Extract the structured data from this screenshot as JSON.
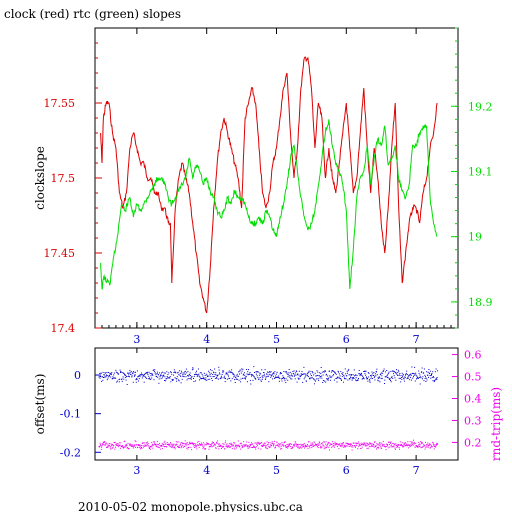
{
  "title": "clock (red) rtc (green) slopes",
  "footer": "2010-05-02  monopole.physics.ubc.ca",
  "colors": {
    "clock": "#dd0000",
    "rtc": "#00dd00",
    "offset": "#0000cc",
    "rndtrip": "#ee00ee",
    "axis": "#000000"
  },
  "chart_data": [
    {
      "type": "line",
      "title": "clock (red) rtc (green) slopes",
      "xlabel": "",
      "ylabel": "clockslope",
      "xlim": [
        2.4,
        7.6
      ],
      "ylim": [
        17.4,
        17.6
      ],
      "y2lim": [
        18.86,
        19.32
      ],
      "x_ticks": [
        3,
        4,
        5,
        6,
        7
      ],
      "y_ticks": [
        17.4,
        17.45,
        17.5,
        17.55
      ],
      "y_tick_labels": [
        "17.4",
        "17.45",
        "17.5",
        "17.55"
      ],
      "y2_ticks": [
        18.9,
        19,
        19.1,
        19.2
      ],
      "y2_tick_labels": [
        "18.9",
        "19",
        "19.1",
        "19.2"
      ],
      "series": [
        {
          "name": "clock",
          "axis": "left",
          "x": [
            2.48,
            2.5,
            2.52,
            2.56,
            2.6,
            2.65,
            2.7,
            2.75,
            2.8,
            2.85,
            2.9,
            2.95,
            3.0,
            3.05,
            3.1,
            3.15,
            3.2,
            3.25,
            3.3,
            3.35,
            3.4,
            3.45,
            3.48,
            3.5,
            3.55,
            3.6,
            3.65,
            3.7,
            3.75,
            3.8,
            3.85,
            3.9,
            3.95,
            4.0,
            4.05,
            4.1,
            4.15,
            4.2,
            4.25,
            4.3,
            4.35,
            4.4,
            4.45,
            4.5,
            4.55,
            4.6,
            4.65,
            4.7,
            4.75,
            4.8,
            4.85,
            4.9,
            4.95,
            5.0,
            5.05,
            5.1,
            5.15,
            5.2,
            5.25,
            5.3,
            5.35,
            5.4,
            5.45,
            5.5,
            5.55,
            5.6,
            5.65,
            5.7,
            5.75,
            5.8,
            5.85,
            5.9,
            5.95,
            6.0,
            6.05,
            6.1,
            6.15,
            6.2,
            6.25,
            6.3,
            6.35,
            6.4,
            6.45,
            6.5,
            6.55,
            6.6,
            6.65,
            6.7,
            6.75,
            6.8,
            6.85,
            6.9,
            6.95,
            7.0,
            7.05,
            7.1,
            7.15,
            7.2,
            7.25,
            7.3
          ],
          "y": [
            17.53,
            17.51,
            17.54,
            17.55,
            17.55,
            17.53,
            17.52,
            17.49,
            17.48,
            17.49,
            17.52,
            17.53,
            17.52,
            17.51,
            17.51,
            17.5,
            17.5,
            17.49,
            17.49,
            17.48,
            17.48,
            17.47,
            17.47,
            17.43,
            17.48,
            17.5,
            17.51,
            17.5,
            17.49,
            17.47,
            17.45,
            17.43,
            17.42,
            17.41,
            17.44,
            17.48,
            17.51,
            17.53,
            17.54,
            17.53,
            17.52,
            17.51,
            17.5,
            17.48,
            17.54,
            17.55,
            17.56,
            17.55,
            17.52,
            17.49,
            17.48,
            17.49,
            17.51,
            17.52,
            17.54,
            17.56,
            17.57,
            17.53,
            17.5,
            17.52,
            17.56,
            17.58,
            17.58,
            17.56,
            17.52,
            17.55,
            17.54,
            17.5,
            17.52,
            17.5,
            17.49,
            17.51,
            17.53,
            17.55,
            17.52,
            17.49,
            17.5,
            17.53,
            17.56,
            17.52,
            17.49,
            17.52,
            17.5,
            17.47,
            17.45,
            17.48,
            17.52,
            17.55,
            17.48,
            17.43,
            17.45,
            17.47,
            17.48,
            17.48,
            17.47,
            17.49,
            17.5,
            17.52,
            17.53,
            17.55
          ]
        },
        {
          "name": "rtc",
          "axis": "right",
          "x": [
            2.48,
            2.5,
            2.53,
            2.57,
            2.62,
            2.67,
            2.72,
            2.78,
            2.83,
            2.9,
            2.95,
            3.0,
            3.05,
            3.1,
            3.15,
            3.2,
            3.25,
            3.3,
            3.35,
            3.4,
            3.45,
            3.5,
            3.55,
            3.6,
            3.65,
            3.7,
            3.75,
            3.8,
            3.85,
            3.9,
            3.95,
            4.0,
            4.05,
            4.1,
            4.15,
            4.2,
            4.25,
            4.3,
            4.35,
            4.4,
            4.45,
            4.5,
            4.55,
            4.6,
            4.65,
            4.7,
            4.75,
            4.8,
            4.85,
            4.9,
            4.95,
            5.0,
            5.05,
            5.1,
            5.15,
            5.2,
            5.25,
            5.3,
            5.35,
            5.4,
            5.45,
            5.5,
            5.55,
            5.6,
            5.65,
            5.7,
            5.75,
            5.8,
            5.85,
            5.9,
            5.95,
            6.0,
            6.05,
            6.1,
            6.15,
            6.2,
            6.25,
            6.3,
            6.35,
            6.4,
            6.45,
            6.5,
            6.55,
            6.6,
            6.65,
            6.7,
            6.75,
            6.8,
            6.85,
            6.9,
            6.95,
            7.0,
            7.05,
            7.1,
            7.15,
            7.2,
            7.25,
            7.3
          ],
          "y": [
            18.96,
            18.92,
            18.94,
            18.93,
            18.93,
            18.97,
            19.0,
            19.05,
            19.04,
            19.06,
            19.03,
            19.05,
            19.04,
            19.05,
            19.06,
            19.07,
            19.08,
            19.09,
            19.09,
            19.08,
            19.06,
            19.05,
            19.06,
            19.07,
            19.08,
            19.09,
            19.12,
            19.09,
            19.11,
            19.1,
            19.08,
            19.09,
            19.07,
            19.06,
            19.04,
            19.03,
            19.04,
            19.06,
            19.05,
            19.07,
            19.06,
            19.06,
            19.05,
            19.03,
            19.02,
            19.02,
            19.03,
            19.02,
            19.04,
            19.03,
            19.01,
            19.0,
            19.03,
            19.05,
            19.08,
            19.12,
            19.14,
            19.1,
            19.06,
            19.03,
            19.01,
            19.02,
            19.04,
            19.08,
            19.12,
            19.16,
            19.18,
            19.14,
            19.11,
            19.1,
            19.08,
            19.04,
            18.92,
            18.98,
            19.06,
            19.09,
            19.1,
            19.14,
            19.08,
            19.12,
            19.15,
            19.14,
            19.17,
            19.11,
            19.12,
            19.14,
            19.09,
            19.07,
            19.06,
            19.08,
            19.14,
            19.14,
            19.16,
            19.17,
            19.17,
            19.06,
            19.02,
            19.0
          ]
        }
      ]
    },
    {
      "type": "scatter",
      "xlabel": "",
      "ylabel": "offset(ms)",
      "y2label": "rnd-trip(ms)",
      "xlim": [
        2.4,
        7.6
      ],
      "ylim": [
        -0.22,
        0.07
      ],
      "y2lim": [
        0.12,
        0.63
      ],
      "x_ticks": [
        3,
        4,
        5,
        6,
        7
      ],
      "y_ticks": [
        0,
        -0.1,
        -0.2
      ],
      "y_tick_labels": [
        "0",
        "-0.1",
        "-0.2"
      ],
      "y2_ticks": [
        0.2,
        0.3,
        0.4,
        0.5,
        0.6
      ],
      "y2_tick_labels": [
        "0.2",
        "0.3",
        "0.4",
        "0.5",
        "0.6"
      ],
      "series": [
        {
          "name": "offset",
          "axis": "left",
          "x_range": [
            2.45,
            7.3
          ],
          "y_center": 0.0,
          "y_spread": 0.012
        },
        {
          "name": "rnd-trip",
          "axis": "right",
          "x_range": [
            2.45,
            7.3
          ],
          "y_center": 0.19,
          "y_spread": 0.012
        }
      ]
    }
  ]
}
